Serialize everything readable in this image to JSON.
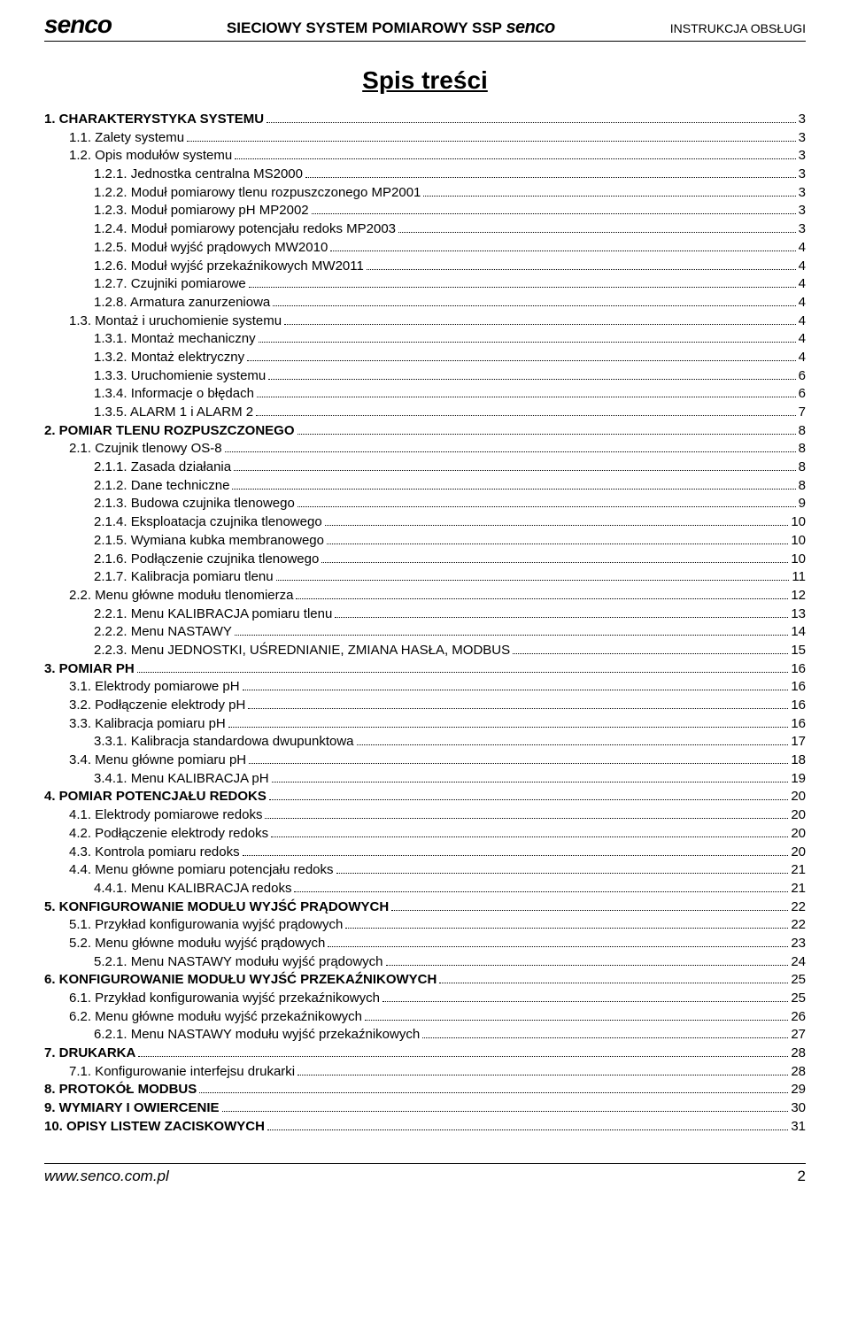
{
  "header": {
    "brand": "senco",
    "center_pre": "SIECIOWY SYSTEM POMIAROWY SSP ",
    "center_brand": "senco",
    "right": "INSTRUKCJA OBSŁUGI"
  },
  "title": "Spis treści",
  "toc": [
    {
      "indent": 0,
      "bold": true,
      "label": "1. CHARAKTERYSTYKA SYSTEMU",
      "page": "3"
    },
    {
      "indent": 1,
      "bold": false,
      "label": "1.1. Zalety systemu",
      "page": "3"
    },
    {
      "indent": 1,
      "bold": false,
      "label": "1.2. Opis modułów systemu",
      "page": "3"
    },
    {
      "indent": 2,
      "bold": false,
      "label": "1.2.1. Jednostka centralna MS2000",
      "page": "3"
    },
    {
      "indent": 2,
      "bold": false,
      "label": "1.2.2. Moduł pomiarowy tlenu rozpuszczonego MP2001",
      "page": "3"
    },
    {
      "indent": 2,
      "bold": false,
      "label": "1.2.3. Moduł pomiarowy pH MP2002",
      "page": "3"
    },
    {
      "indent": 2,
      "bold": false,
      "label": "1.2.4. Moduł pomiarowy potencjału redoks MP2003",
      "page": "3"
    },
    {
      "indent": 2,
      "bold": false,
      "label": "1.2.5. Moduł wyjść prądowych MW2010",
      "page": "4"
    },
    {
      "indent": 2,
      "bold": false,
      "label": "1.2.6. Moduł wyjść przekaźnikowych MW2011",
      "page": "4"
    },
    {
      "indent": 2,
      "bold": false,
      "label": "1.2.7. Czujniki pomiarowe",
      "page": "4"
    },
    {
      "indent": 2,
      "bold": false,
      "label": "1.2.8. Armatura zanurzeniowa",
      "page": "4"
    },
    {
      "indent": 1,
      "bold": false,
      "label": "1.3. Montaż i uruchomienie systemu",
      "page": "4"
    },
    {
      "indent": 2,
      "bold": false,
      "label": "1.3.1. Montaż mechaniczny",
      "page": "4"
    },
    {
      "indent": 2,
      "bold": false,
      "label": "1.3.2. Montaż elektryczny",
      "page": "4"
    },
    {
      "indent": 2,
      "bold": false,
      "label": "1.3.3. Uruchomienie systemu",
      "page": "6"
    },
    {
      "indent": 2,
      "bold": false,
      "label": "1.3.4. Informacje o błędach",
      "page": "6"
    },
    {
      "indent": 2,
      "bold": false,
      "label": "1.3.5. ALARM 1 i ALARM 2",
      "page": "7"
    },
    {
      "indent": 0,
      "bold": true,
      "label": "2. POMIAR TLENU ROZPUSZCZONEGO",
      "page": "8"
    },
    {
      "indent": 1,
      "bold": false,
      "label": "2.1. Czujnik tlenowy OS-8",
      "page": "8"
    },
    {
      "indent": 2,
      "bold": false,
      "label": "2.1.1. Zasada działania",
      "page": "8"
    },
    {
      "indent": 2,
      "bold": false,
      "label": "2.1.2. Dane techniczne",
      "page": "8"
    },
    {
      "indent": 2,
      "bold": false,
      "label": "2.1.3. Budowa czujnika tlenowego",
      "page": "9"
    },
    {
      "indent": 2,
      "bold": false,
      "label": "2.1.4. Eksploatacja czujnika tlenowego",
      "page": "10"
    },
    {
      "indent": 2,
      "bold": false,
      "label": "2.1.5. Wymiana kubka membranowego",
      "page": "10"
    },
    {
      "indent": 2,
      "bold": false,
      "label": "2.1.6. Podłączenie czujnika tlenowego",
      "page": "10"
    },
    {
      "indent": 2,
      "bold": false,
      "label": "2.1.7. Kalibracja pomiaru tlenu",
      "page": "11"
    },
    {
      "indent": 1,
      "bold": false,
      "label": "2.2. Menu główne modułu tlenomierza",
      "page": "12"
    },
    {
      "indent": 2,
      "bold": false,
      "label": "2.2.1. Menu KALIBRACJA pomiaru tlenu",
      "page": "13"
    },
    {
      "indent": 2,
      "bold": false,
      "label": "2.2.2. Menu NASTAWY",
      "page": "14"
    },
    {
      "indent": 2,
      "bold": false,
      "label": "2.2.3. Menu JEDNOSTKI, UŚREDNIANIE, ZMIANA HASŁA, MODBUS",
      "page": "15"
    },
    {
      "indent": 0,
      "bold": true,
      "label": "3. POMIAR PH",
      "page": "16"
    },
    {
      "indent": 1,
      "bold": false,
      "label": "3.1. Elektrody pomiarowe pH",
      "page": "16"
    },
    {
      "indent": 1,
      "bold": false,
      "label": "3.2. Podłączenie elektrody pH",
      "page": "16"
    },
    {
      "indent": 1,
      "bold": false,
      "label": "3.3. Kalibracja pomiaru pH",
      "page": "16"
    },
    {
      "indent": 2,
      "bold": false,
      "label": "3.3.1. Kalibracja standardowa dwupunktowa",
      "page": "17"
    },
    {
      "indent": 1,
      "bold": false,
      "label": "3.4. Menu główne pomiaru pH",
      "page": "18"
    },
    {
      "indent": 2,
      "bold": false,
      "label": "3.4.1. Menu KALIBRACJA pH",
      "page": "19"
    },
    {
      "indent": 0,
      "bold": true,
      "label": "4. POMIAR POTENCJAŁU REDOKS",
      "page": "20"
    },
    {
      "indent": 1,
      "bold": false,
      "label": "4.1. Elektrody pomiarowe redoks",
      "page": "20"
    },
    {
      "indent": 1,
      "bold": false,
      "label": "4.2. Podłączenie elektrody redoks",
      "page": "20"
    },
    {
      "indent": 1,
      "bold": false,
      "label": "4.3. Kontrola pomiaru redoks",
      "page": "20"
    },
    {
      "indent": 1,
      "bold": false,
      "label": "4.4. Menu główne pomiaru potencjału redoks",
      "page": "21"
    },
    {
      "indent": 2,
      "bold": false,
      "label": "4.4.1. Menu KALIBRACJA redoks",
      "page": "21"
    },
    {
      "indent": 0,
      "bold": true,
      "label": "5. KONFIGUROWANIE MODUŁU WYJŚĆ PRĄDOWYCH",
      "page": "22"
    },
    {
      "indent": 1,
      "bold": false,
      "label": "5.1. Przykład konfigurowania wyjść prądowych",
      "page": "22"
    },
    {
      "indent": 1,
      "bold": false,
      "label": "5.2. Menu główne modułu wyjść prądowych",
      "page": "23"
    },
    {
      "indent": 2,
      "bold": false,
      "label": "5.2.1. Menu NASTAWY modułu wyjść prądowych",
      "page": "24"
    },
    {
      "indent": 0,
      "bold": true,
      "label": "6. KONFIGUROWANIE MODUŁU WYJŚĆ PRZEKAŹNIKOWYCH",
      "page": "25"
    },
    {
      "indent": 1,
      "bold": false,
      "label": "6.1. Przykład konfigurowania wyjść przekaźnikowych",
      "page": "25"
    },
    {
      "indent": 1,
      "bold": false,
      "label": "6.2. Menu główne modułu wyjść przekaźnikowych",
      "page": "26"
    },
    {
      "indent": 2,
      "bold": false,
      "label": "6.2.1. Menu NASTAWY modułu wyjść przekaźnikowych",
      "page": "27"
    },
    {
      "indent": 0,
      "bold": true,
      "label": "7. DRUKARKA",
      "page": "28"
    },
    {
      "indent": 1,
      "bold": false,
      "label": "7.1. Konfigurowanie interfejsu drukarki",
      "page": "28"
    },
    {
      "indent": 0,
      "bold": true,
      "label": "8. PROTOKÓŁ MODBUS",
      "page": "29"
    },
    {
      "indent": 0,
      "bold": true,
      "label": "9. WYMIARY I OWIERCENIE",
      "page": "30"
    },
    {
      "indent": 0,
      "bold": true,
      "label": "10. OPISY LISTEW ZACISKOWYCH",
      "page": "31"
    }
  ],
  "footer": {
    "url": "www.senco.com.pl",
    "page_number": "2"
  }
}
